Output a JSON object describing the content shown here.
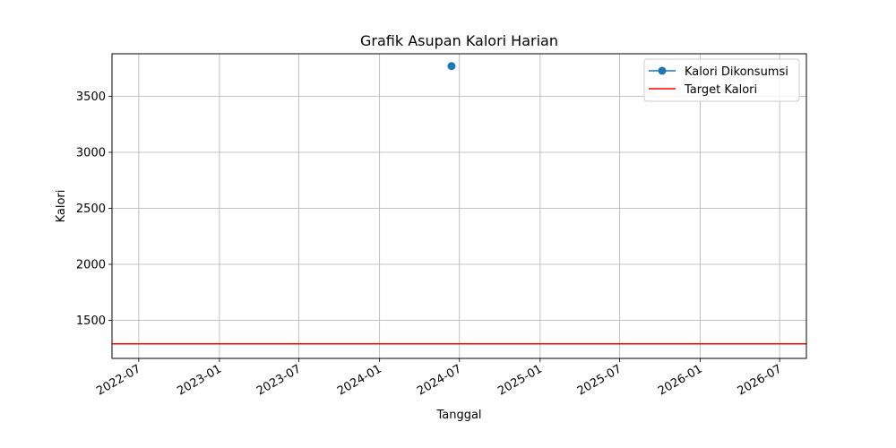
{
  "chart_data": {
    "type": "line",
    "title": "Grafik Asupan Kalori Harian",
    "xlabel": "Tanggal",
    "ylabel": "Kalori",
    "x_axis_type": "date",
    "xlim": [
      "2022-05-01",
      "2026-08-31"
    ],
    "ylim": [
      1160,
      3880
    ],
    "x_ticks": [
      "2022-07-01",
      "2023-01-01",
      "2023-07-01",
      "2024-01-01",
      "2024-07-01",
      "2025-01-01",
      "2025-07-01",
      "2026-01-01",
      "2026-07-01"
    ],
    "x_tick_labels": [
      "2022-07",
      "2023-01",
      "2023-07",
      "2024-01",
      "2024-07",
      "2025-01",
      "2025-07",
      "2026-01",
      "2026-07"
    ],
    "y_ticks": [
      1500,
      2000,
      2500,
      3000,
      3500
    ],
    "y_tick_labels": [
      "1500",
      "2000",
      "2500",
      "3000",
      "3500"
    ],
    "grid": true,
    "legend_position": "top-right",
    "series": [
      {
        "name": "Kalori Dikonsumsi",
        "color": "#1f77b4",
        "marker": "circle",
        "points": [
          {
            "x": "2024-06-13",
            "y": 3770
          }
        ]
      }
    ],
    "reference_lines": [
      {
        "name": "Target Kalori",
        "orientation": "horizontal",
        "y": 1290,
        "color": "#ff0000"
      }
    ]
  }
}
